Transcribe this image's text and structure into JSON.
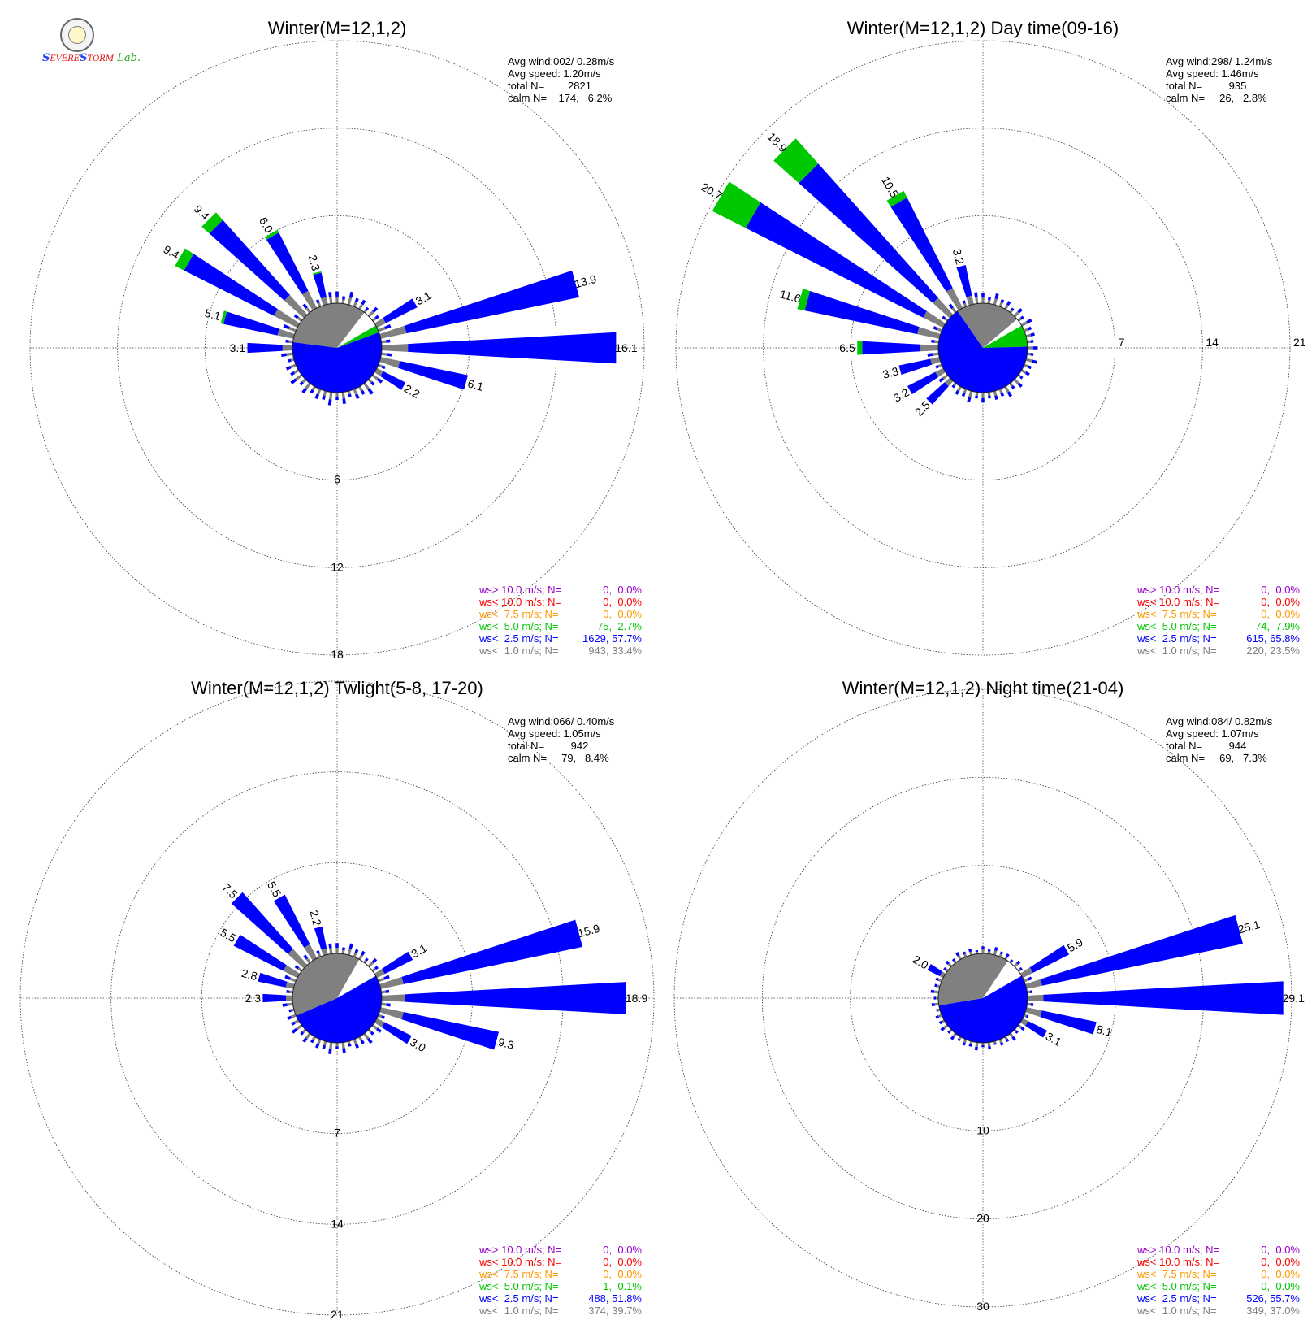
{
  "logo": {
    "text_a": "S",
    "text_b": "EVERE",
    "text_c": "TORM",
    "text_d": "Lab."
  },
  "colors": {
    "gray": "#808080",
    "blue": "#0000ff",
    "green": "#00c800",
    "orange": "#ff9900",
    "red": "#ff0000",
    "purple": "#9900cc"
  },
  "legend_labels": [
    "ws> 10.0 m/s; N=",
    "ws< 10.0 m/s; N=",
    "ws<  7.5 m/s; N=",
    "ws<  5.0 m/s; N=",
    "ws<  2.5 m/s; N=",
    "ws<  1.0 m/s; N="
  ],
  "chart_data": [
    {
      "type": "wind-rose",
      "title": "Winter(M=12,1,2)",
      "stats": [
        "Avg wind:002/ 0.28m/s",
        "Avg speed: 1.20m/s",
        "total N=        2821",
        "calm N=    174,   6.2%"
      ],
      "ring_labels": [
        "6",
        "12",
        "18"
      ],
      "ring_values": [
        6,
        12,
        18
      ],
      "calm_pie": {
        "gray": 33.4,
        "blue": 57.7,
        "green": 2.7
      },
      "legend_values": [
        "0,  0.0%",
        "0,  0.0%",
        "0,  0.0%",
        "75,  2.7%",
        "1629, 57.7%",
        "943, 33.4%"
      ],
      "directions": [
        {
          "dir": 90,
          "total": 16.1,
          "green": 0,
          "label": "16.1"
        },
        {
          "dir": 75,
          "total": 13.9,
          "green": 0,
          "label": "13.9"
        },
        {
          "dir": 60,
          "total": 3.1,
          "green": 0,
          "label": "3.1"
        },
        {
          "dir": 105,
          "total": 6.1,
          "green": 0,
          "label": "6.1"
        },
        {
          "dir": 120,
          "total": 2.2,
          "green": 0,
          "label": "2.2"
        },
        {
          "dir": 315,
          "total": 9.4,
          "green": 0.7,
          "label": "9.4"
        },
        {
          "dir": 300,
          "total": 9.4,
          "green": 0.7,
          "label": "9.4"
        },
        {
          "dir": 330,
          "total": 6.0,
          "green": 0.2,
          "label": "6.0"
        },
        {
          "dir": 285,
          "total": 5.1,
          "green": 0.2,
          "label": "5.1"
        },
        {
          "dir": 270,
          "total": 3.1,
          "green": 0,
          "label": "3.1"
        },
        {
          "dir": 345,
          "total": 2.3,
          "green": 0.1,
          "label": "2.3"
        }
      ]
    },
    {
      "type": "wind-rose",
      "title": "Winter(M=12,1,2) Day time(09-16)",
      "stats": [
        "Avg wind:298/ 1.24m/s",
        "Avg speed: 1.46m/s",
        "total N=         935",
        "calm N=     26,   2.8%"
      ],
      "ring_labels": [
        "7",
        "14",
        "21"
      ],
      "ring_values": [
        7,
        14,
        21
      ],
      "calm_pie": {
        "gray": 23.5,
        "blue": 65.8,
        "green": 7.9
      },
      "legend_values": [
        "0,  0.0%",
        "0,  0.0%",
        "0,  0.0%",
        "74,  7.9%",
        "615, 65.8%",
        "220, 23.5%"
      ],
      "directions": [
        {
          "dir": 300,
          "total": 20.7,
          "green": 3.0,
          "label": "20.7"
        },
        {
          "dir": 315,
          "total": 18.9,
          "green": 2.7,
          "label": "18.9"
        },
        {
          "dir": 330,
          "total": 10.5,
          "green": 0.6,
          "label": "10.5"
        },
        {
          "dir": 285,
          "total": 11.6,
          "green": 0.6,
          "label": "11.6"
        },
        {
          "dir": 345,
          "total": 3.2,
          "green": 0,
          "label": "3.2"
        },
        {
          "dir": 270,
          "total": 6.5,
          "green": 0.4,
          "label": "6.5"
        },
        {
          "dir": 255,
          "total": 3.3,
          "green": 0,
          "label": "3.3"
        },
        {
          "dir": 240,
          "total": 3.2,
          "green": 0,
          "label": "3.2"
        },
        {
          "dir": 225,
          "total": 2.5,
          "green": 0,
          "label": "2.5"
        }
      ]
    },
    {
      "type": "wind-rose",
      "title": "Winter(M=12,1,2) Twlight(5-8, 17-20)",
      "stats": [
        "Avg wind:066/ 0.40m/s",
        "Avg speed: 1.05m/s",
        "total N=         942",
        "calm N=     79,   8.4%"
      ],
      "ring_labels": [
        "7",
        "14",
        "21"
      ],
      "ring_values": [
        7,
        14,
        21
      ],
      "calm_pie": {
        "gray": 39.7,
        "blue": 51.8,
        "green": 0.1
      },
      "legend_values": [
        "0,  0.0%",
        "0,  0.0%",
        "0,  0.0%",
        "1,  0.1%",
        "488, 51.8%",
        "374, 39.7%"
      ],
      "directions": [
        {
          "dir": 90,
          "total": 18.9,
          "green": 0,
          "label": "18.9"
        },
        {
          "dir": 75,
          "total": 15.9,
          "green": 0,
          "label": "15.9"
        },
        {
          "dir": 105,
          "total": 9.3,
          "green": 0,
          "label": "9.3"
        },
        {
          "dir": 60,
          "total": 3.1,
          "green": 0,
          "label": "3.1"
        },
        {
          "dir": 120,
          "total": 3.0,
          "green": 0,
          "label": "3.0"
        },
        {
          "dir": 315,
          "total": 7.5,
          "green": 0,
          "label": "7.5"
        },
        {
          "dir": 330,
          "total": 5.5,
          "green": 0,
          "label": "5.5"
        },
        {
          "dir": 300,
          "total": 5.5,
          "green": 0,
          "label": "5.5"
        },
        {
          "dir": 345,
          "total": 2.2,
          "green": 0,
          "label": "2.2"
        },
        {
          "dir": 285,
          "total": 2.8,
          "green": 0,
          "label": "2.8"
        },
        {
          "dir": 270,
          "total": 2.3,
          "green": 0,
          "label": "2.3"
        }
      ]
    },
    {
      "type": "wind-rose",
      "title": "Winter(M=12,1,2) Night time(21-04)",
      "stats": [
        "Avg wind:084/ 0.82m/s",
        "Avg speed: 1.07m/s",
        "total N=         944",
        "calm N=     69,   7.3%"
      ],
      "ring_labels": [
        "10",
        "20",
        "30"
      ],
      "ring_values": [
        10,
        20,
        30
      ],
      "calm_pie": {
        "gray": 37.0,
        "blue": 55.7,
        "green": 0
      },
      "legend_values": [
        "0,  0.0%",
        "0,  0.0%",
        "0,  0.0%",
        "0,  0.0%",
        "526, 55.7%",
        "349, 37.0%"
      ],
      "directions": [
        {
          "dir": 90,
          "total": 29.1,
          "green": 0,
          "label": "29.1"
        },
        {
          "dir": 75,
          "total": 25.1,
          "green": 0,
          "label": "25.1"
        },
        {
          "dir": 105,
          "total": 8.1,
          "green": 0,
          "label": "8.1"
        },
        {
          "dir": 60,
          "total": 5.9,
          "green": 0,
          "label": "5.9"
        },
        {
          "dir": 120,
          "total": 3.1,
          "green": 0,
          "label": "3.1"
        },
        {
          "dir": 300,
          "total": 2.0,
          "green": 0,
          "label": "2.0"
        }
      ]
    }
  ]
}
